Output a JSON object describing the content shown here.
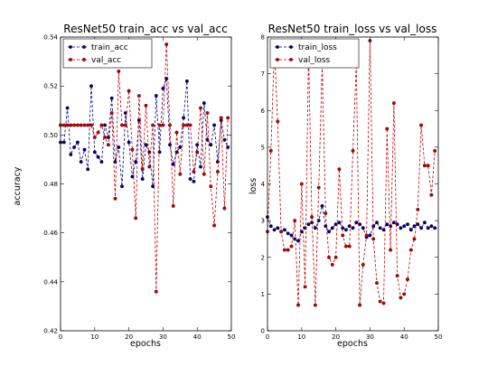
{
  "chart_data": [
    {
      "type": "line",
      "title": "ResNet50 train_acc vs val_acc",
      "xlabel": "epochs",
      "ylabel": "accuracy",
      "xlim": [
        0,
        50
      ],
      "ylim": [
        0.42,
        0.54
      ],
      "xticks": [
        "0",
        "10",
        "20",
        "30",
        "40",
        "50"
      ],
      "yticks": [
        "0.42",
        "0.44",
        "0.46",
        "0.48",
        "0.50",
        "0.52",
        "0.54"
      ],
      "grid": false,
      "legend_position": "top-left",
      "series": [
        {
          "name": "train_acc",
          "color": "#00007f",
          "x": [
            0,
            1,
            2,
            3,
            4,
            5,
            6,
            7,
            8,
            9,
            10,
            11,
            12,
            13,
            14,
            15,
            16,
            17,
            18,
            19,
            20,
            21,
            22,
            23,
            24,
            25,
            26,
            27,
            28,
            29,
            30,
            31,
            32,
            33,
            34,
            35,
            36,
            37,
            38,
            39,
            40,
            41,
            42,
            43,
            44,
            45,
            46,
            47,
            48,
            49
          ],
          "values": [
            0.497,
            0.497,
            0.511,
            0.492,
            0.495,
            0.497,
            0.489,
            0.494,
            0.486,
            0.52,
            0.493,
            0.491,
            0.489,
            0.504,
            0.499,
            0.515,
            0.489,
            0.495,
            0.479,
            0.509,
            0.497,
            0.483,
            0.489,
            0.506,
            0.482,
            0.496,
            0.493,
            0.479,
            0.516,
            0.493,
            0.519,
            0.523,
            0.496,
            0.488,
            0.493,
            0.495,
            0.507,
            0.522,
            0.482,
            0.481,
            0.496,
            0.487,
            0.513,
            0.498,
            0.496,
            0.504,
            0.489,
            0.506,
            0.498,
            0.495
          ]
        },
        {
          "name": "val_acc",
          "color": "#bf0000",
          "x": [
            0,
            1,
            2,
            3,
            4,
            5,
            6,
            7,
            8,
            9,
            10,
            11,
            12,
            13,
            14,
            15,
            16,
            17,
            18,
            19,
            20,
            21,
            22,
            23,
            24,
            25,
            26,
            27,
            28,
            29,
            30,
            31,
            32,
            33,
            34,
            35,
            36,
            37,
            38,
            39,
            40,
            41,
            42,
            43,
            44,
            45,
            46,
            47,
            48,
            49
          ],
          "values": [
            0.504,
            0.504,
            0.504,
            0.504,
            0.504,
            0.504,
            0.504,
            0.504,
            0.504,
            0.504,
            0.499,
            0.501,
            0.504,
            0.499,
            0.496,
            0.509,
            0.474,
            0.526,
            0.504,
            0.504,
            0.518,
            0.494,
            0.466,
            0.516,
            0.486,
            0.512,
            0.487,
            0.504,
            0.436,
            0.504,
            0.504,
            0.537,
            0.504,
            0.471,
            0.501,
            0.484,
            0.504,
            0.504,
            0.504,
            0.485,
            0.493,
            0.511,
            0.484,
            0.509,
            0.479,
            0.463,
            0.485,
            0.507,
            0.47,
            0.507
          ]
        }
      ]
    },
    {
      "type": "line",
      "title": "ResNet50 train_loss vs val_loss",
      "xlabel": "epochs",
      "ylabel": "loss",
      "xlim": [
        0,
        50
      ],
      "ylim": [
        0,
        8
      ],
      "xticks": [
        "0",
        "10",
        "20",
        "30",
        "40",
        "50"
      ],
      "yticks": [
        "0",
        "1",
        "2",
        "3",
        "4",
        "5",
        "6",
        "7",
        "8"
      ],
      "grid": false,
      "legend_position": "top-left",
      "series": [
        {
          "name": "train_loss",
          "color": "#00007f",
          "x": [
            0,
            1,
            2,
            3,
            4,
            5,
            6,
            7,
            8,
            9,
            10,
            11,
            12,
            13,
            14,
            15,
            16,
            17,
            18,
            19,
            20,
            21,
            22,
            23,
            24,
            25,
            26,
            27,
            28,
            29,
            30,
            31,
            32,
            33,
            34,
            35,
            36,
            37,
            38,
            39,
            40,
            41,
            42,
            43,
            44,
            45,
            46,
            47,
            48,
            49
          ],
          "values": [
            3.1,
            2.85,
            2.75,
            2.8,
            2.7,
            2.75,
            2.65,
            2.6,
            2.5,
            2.45,
            2.7,
            2.8,
            2.9,
            2.95,
            2.8,
            3.0,
            3.4,
            2.85,
            2.7,
            2.8,
            2.9,
            2.95,
            2.8,
            2.75,
            2.85,
            2.8,
            2.95,
            2.9,
            2.8,
            2.55,
            2.6,
            2.85,
            2.95,
            2.8,
            2.75,
            2.9,
            2.85,
            2.95,
            2.9,
            2.8,
            2.85,
            2.9,
            2.75,
            2.85,
            2.9,
            2.8,
            2.95,
            2.8,
            2.85,
            2.8
          ]
        },
        {
          "name": "val_loss",
          "color": "#bf0000",
          "x": [
            0,
            1,
            2,
            3,
            4,
            5,
            6,
            7,
            8,
            9,
            10,
            11,
            12,
            13,
            14,
            15,
            16,
            17,
            18,
            19,
            20,
            21,
            22,
            23,
            24,
            25,
            26,
            27,
            28,
            29,
            30,
            31,
            32,
            33,
            34,
            35,
            36,
            37,
            38,
            39,
            40,
            41,
            42,
            43,
            44,
            45,
            46,
            47,
            48,
            49
          ],
          "values": [
            2.7,
            4.9,
            7.7,
            5.7,
            2.7,
            2.2,
            2.2,
            2.3,
            3.0,
            0.7,
            4.0,
            1.2,
            7.6,
            3.1,
            0.7,
            3.9,
            7.2,
            3.2,
            2.0,
            1.8,
            2.0,
            4.4,
            2.6,
            2.3,
            2.3,
            4.9,
            7.3,
            0.7,
            1.8,
            2.6,
            7.9,
            2.5,
            1.3,
            0.8,
            0.75,
            5.5,
            2.2,
            6.2,
            1.5,
            0.9,
            1.0,
            1.4,
            2.2,
            2.5,
            3.3,
            5.6,
            4.5,
            4.5,
            3.7,
            4.9
          ]
        }
      ]
    }
  ]
}
